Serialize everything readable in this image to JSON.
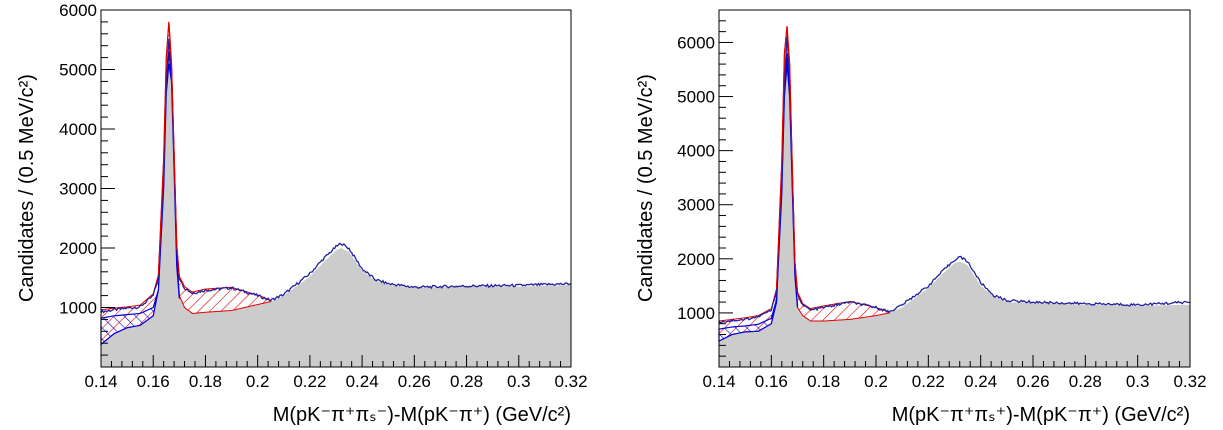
{
  "chart_data": [
    {
      "type": "area",
      "panel": "left",
      "xlabel": "M(pK⁻π⁺πₛ⁻)-M(pK⁻π⁺) (GeV/c²)",
      "ylabel": "Candidates / (0.5 MeV/c²)",
      "xlim": [
        0.14,
        0.32
      ],
      "ylim": [
        0,
        6000
      ],
      "x_ticks": [
        "0.14",
        "0.16",
        "0.18",
        "0.2",
        "0.22",
        "0.24",
        "0.26",
        "0.28",
        "0.3",
        "0.32"
      ],
      "y_ticks": [
        "1000",
        "2000",
        "3000",
        "4000",
        "5000",
        "6000"
      ],
      "background": {
        "color": "#cccccc",
        "x": [
          0.14,
          0.145,
          0.15,
          0.155,
          0.16,
          0.162,
          0.164,
          0.165,
          0.166,
          0.167,
          0.168,
          0.169,
          0.17,
          0.172,
          0.175,
          0.18,
          0.19,
          0.2,
          0.205,
          0.21,
          0.22,
          0.225,
          0.23,
          0.232,
          0.235,
          0.24,
          0.245,
          0.25,
          0.26,
          0.28,
          0.3,
          0.32
        ],
        "y": [
          380,
          560,
          660,
          700,
          860,
          1300,
          3100,
          4700,
          5300,
          4900,
          3400,
          1800,
          1200,
          1000,
          900,
          920,
          950,
          1050,
          1100,
          1200,
          1520,
          1750,
          1960,
          2000,
          1930,
          1620,
          1450,
          1380,
          1330,
          1350,
          1350,
          1380
        ]
      },
      "total": {
        "color": "#2020a0",
        "x": [
          0.14,
          0.145,
          0.15,
          0.155,
          0.16,
          0.162,
          0.164,
          0.165,
          0.166,
          0.167,
          0.168,
          0.169,
          0.17,
          0.172,
          0.175,
          0.18,
          0.19,
          0.2,
          0.205,
          0.21,
          0.22,
          0.225,
          0.23,
          0.232,
          0.235,
          0.24,
          0.245,
          0.25,
          0.26,
          0.28,
          0.3,
          0.32
        ],
        "y": [
          930,
          960,
          990,
          1010,
          1200,
          1500,
          3200,
          4800,
          5500,
          5000,
          3500,
          2000,
          1500,
          1330,
          1240,
          1290,
          1330,
          1200,
          1120,
          1220,
          1570,
          1810,
          2020,
          2080,
          1990,
          1650,
          1470,
          1400,
          1340,
          1360,
          1370,
          1400
        ]
      },
      "red_component": {
        "x": [
          0.14,
          0.145,
          0.15,
          0.155,
          0.16,
          0.162,
          0.164,
          0.165,
          0.166,
          0.167,
          0.168,
          0.169,
          0.17,
          0.172,
          0.175,
          0.18,
          0.19,
          0.2,
          0.205
        ],
        "y": [
          960,
          990,
          1010,
          1040,
          1230,
          1550,
          3500,
          5200,
          5800,
          5100,
          3600,
          2050,
          1520,
          1350,
          1260,
          1310,
          1340,
          1210,
          1120
        ]
      },
      "blue_component": {
        "x": [
          0.14,
          0.145,
          0.15,
          0.155,
          0.16,
          0.162,
          0.164,
          0.165,
          0.166,
          0.167,
          0.168,
          0.169,
          0.17
        ],
        "y": [
          820,
          860,
          880,
          900,
          1000,
          1300,
          3000,
          4600,
          5100,
          4800,
          3300,
          1700,
          1150
        ]
      }
    },
    {
      "type": "area",
      "panel": "right",
      "xlabel": "M(pK⁻π⁺πₛ⁺)-M(pK⁻π⁺) (GeV/c²)",
      "ylabel": "Candidates / (0.5 MeV/c²)",
      "xlim": [
        0.14,
        0.32
      ],
      "ylim": [
        0,
        6600
      ],
      "x_ticks": [
        "0.14",
        "0.16",
        "0.18",
        "0.2",
        "0.22",
        "0.24",
        "0.26",
        "0.28",
        "0.3",
        "0.32"
      ],
      "y_ticks": [
        "1000",
        "2000",
        "3000",
        "4000",
        "5000",
        "6000"
      ],
      "background": {
        "color": "#cccccc",
        "x": [
          0.14,
          0.145,
          0.15,
          0.155,
          0.16,
          0.162,
          0.164,
          0.165,
          0.166,
          0.167,
          0.168,
          0.169,
          0.17,
          0.172,
          0.175,
          0.18,
          0.19,
          0.2,
          0.205,
          0.21,
          0.22,
          0.225,
          0.23,
          0.232,
          0.235,
          0.24,
          0.245,
          0.25,
          0.26,
          0.28,
          0.3,
          0.32
        ],
        "y": [
          480,
          600,
          650,
          660,
          800,
          1200,
          3300,
          5000,
          5800,
          5100,
          3400,
          1700,
          1100,
          950,
          850,
          850,
          880,
          950,
          1000,
          1100,
          1460,
          1700,
          1920,
          1950,
          1880,
          1500,
          1300,
          1200,
          1180,
          1150,
          1130,
          1150
        ]
      },
      "total": {
        "color": "#2020a0",
        "x": [
          0.14,
          0.145,
          0.15,
          0.155,
          0.16,
          0.162,
          0.164,
          0.165,
          0.166,
          0.167,
          0.168,
          0.169,
          0.17,
          0.172,
          0.175,
          0.18,
          0.19,
          0.2,
          0.205,
          0.21,
          0.22,
          0.225,
          0.23,
          0.232,
          0.235,
          0.24,
          0.245,
          0.25,
          0.26,
          0.28,
          0.3,
          0.32
        ],
        "y": [
          830,
          860,
          880,
          930,
          1050,
          1400,
          3500,
          5300,
          6100,
          5400,
          3600,
          1900,
          1350,
          1150,
          1050,
          1100,
          1200,
          1100,
          1020,
          1150,
          1500,
          1750,
          1980,
          2040,
          1950,
          1560,
          1320,
          1230,
          1200,
          1170,
          1150,
          1200
        ]
      },
      "red_component": {
        "x": [
          0.14,
          0.145,
          0.15,
          0.155,
          0.16,
          0.162,
          0.164,
          0.165,
          0.166,
          0.167,
          0.168,
          0.169,
          0.17,
          0.172,
          0.175,
          0.18,
          0.19,
          0.2,
          0.205
        ],
        "y": [
          850,
          880,
          910,
          950,
          1080,
          1450,
          3800,
          5800,
          6300,
          5600,
          3700,
          1950,
          1380,
          1170,
          1080,
          1130,
          1210,
          1100,
          1020
        ]
      },
      "blue_component": {
        "x": [
          0.14,
          0.145,
          0.15,
          0.155,
          0.16,
          0.162,
          0.164,
          0.165,
          0.166,
          0.167,
          0.168,
          0.169,
          0.17
        ],
        "y": [
          700,
          740,
          760,
          790,
          900,
          1250,
          3200,
          5000,
          5600,
          5000,
          3300,
          1700,
          1150
        ]
      }
    }
  ]
}
